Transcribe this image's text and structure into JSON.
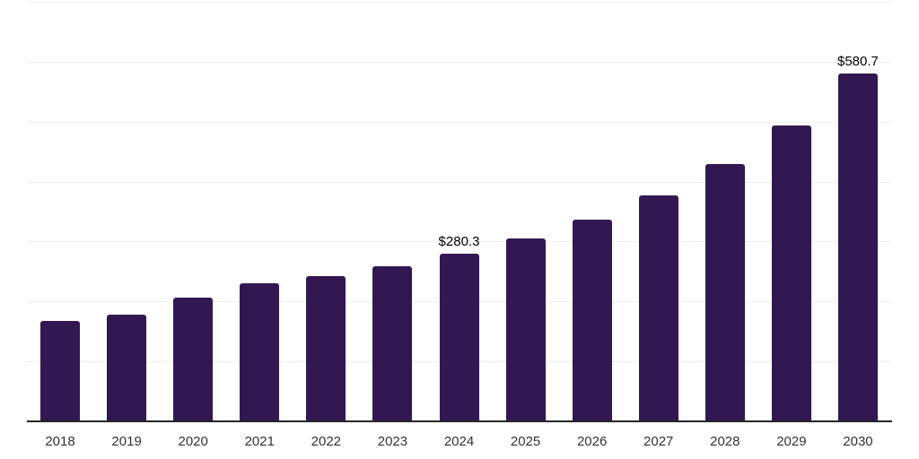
{
  "chart_data": {
    "type": "bar",
    "title": "",
    "xlabel": "",
    "ylabel": "",
    "categories": [
      "2018",
      "2019",
      "2020",
      "2021",
      "2022",
      "2023",
      "2024",
      "2025",
      "2026",
      "2027",
      "2028",
      "2029",
      "2030"
    ],
    "values": [
      167.8,
      177.6,
      206.9,
      229.7,
      242.2,
      258.6,
      280.3,
      305.2,
      336.9,
      376.7,
      428.8,
      493.8,
      580.7
    ],
    "data_labels": [
      "",
      "",
      "",
      "",
      "",
      "",
      "$280.3",
      "",
      "",
      "",
      "",
      "",
      "$580.7"
    ],
    "ylim": [
      0,
      700
    ],
    "grid_step": 100,
    "grid": "horizontal-only",
    "y_tick_labels_visible": false,
    "legend_position": "none",
    "colors": {
      "bar": "#321852",
      "gridline": "#f0f0f0",
      "axis_line": "#262626",
      "tick_label": "#333333",
      "data_label": "#000000",
      "background": "#ffffff"
    }
  }
}
